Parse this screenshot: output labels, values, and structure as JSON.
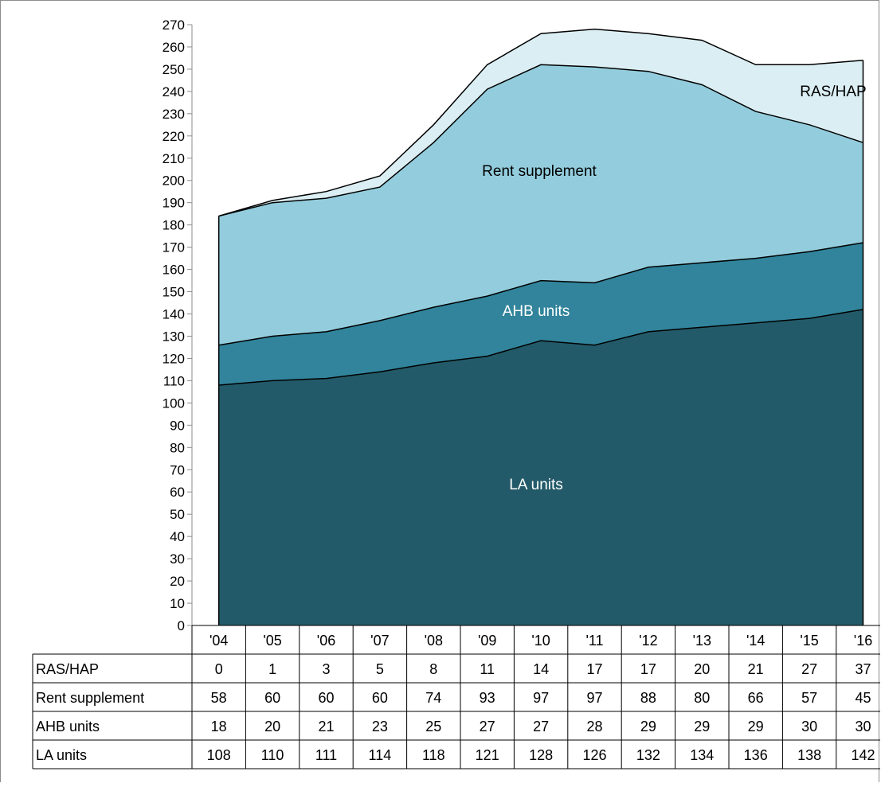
{
  "chart_data": {
    "type": "area",
    "stacked": true,
    "title": "",
    "xlabel": "",
    "ylabel": "",
    "ylim": [
      0,
      270
    ],
    "y_ticks": [
      0,
      10,
      20,
      30,
      40,
      50,
      60,
      70,
      80,
      90,
      100,
      110,
      120,
      130,
      140,
      150,
      160,
      170,
      180,
      190,
      200,
      210,
      220,
      230,
      240,
      250,
      260,
      270
    ],
    "categories": [
      "'04",
      "'05",
      "'06",
      "'07",
      "'08",
      "'09",
      "'10",
      "'11",
      "'12",
      "'13",
      "'14",
      "'15",
      "'16"
    ],
    "series": [
      {
        "name": "LA units",
        "color": "#235a69",
        "values": [
          108,
          110,
          111,
          114,
          118,
          121,
          128,
          126,
          132,
          134,
          136,
          138,
          142
        ]
      },
      {
        "name": "AHB units",
        "color": "#31849b",
        "values": [
          18,
          20,
          21,
          23,
          25,
          27,
          27,
          28,
          29,
          29,
          29,
          30,
          30
        ]
      },
      {
        "name": "Rent supplement",
        "color": "#93cddd",
        "values": [
          58,
          60,
          60,
          60,
          74,
          93,
          97,
          97,
          88,
          80,
          66,
          57,
          45
        ]
      },
      {
        "name": "RAS/HAP",
        "color": "#dbeef3",
        "values": [
          0,
          1,
          3,
          5,
          8,
          11,
          14,
          17,
          17,
          20,
          21,
          27,
          37
        ]
      }
    ],
    "table_rows": [
      "RAS/HAP",
      "Rent supplement",
      "AHB units",
      "LA units"
    ],
    "grid": false,
    "legend": "data-table"
  }
}
